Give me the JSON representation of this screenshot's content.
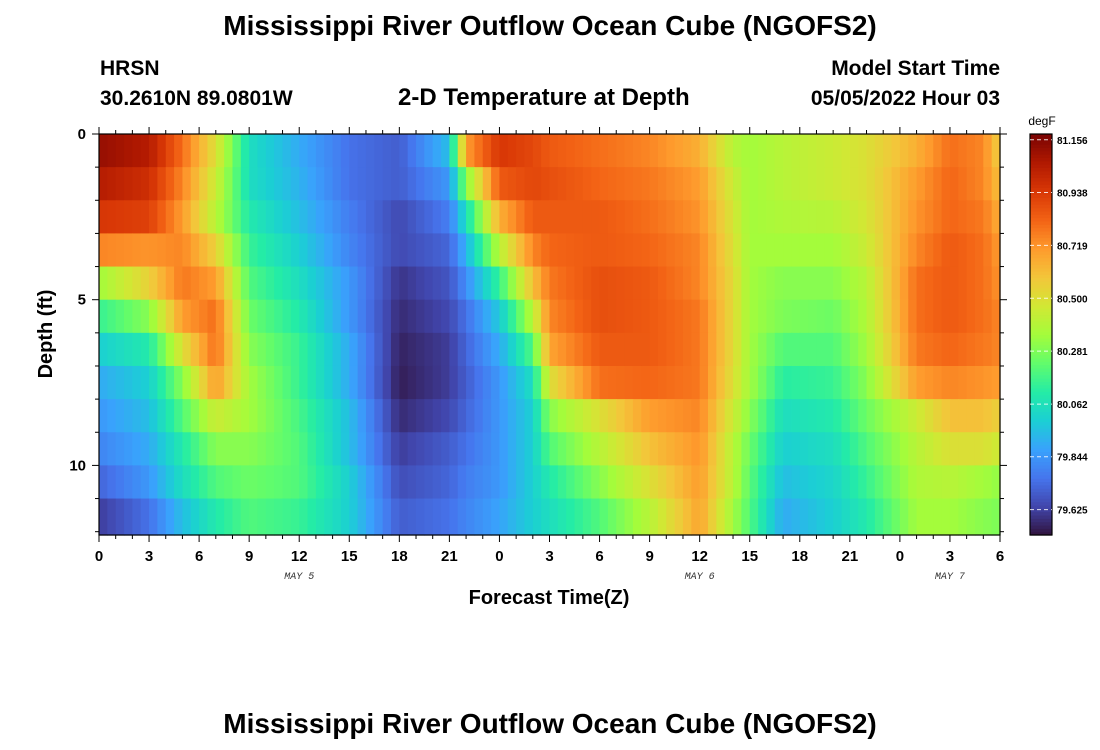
{
  "header": {
    "title": "Mississippi River Outflow Ocean Cube (NGOFS2)",
    "station": "HRSN",
    "coordinates": "30.2610N  89.0801W",
    "subtitle": "2-D Temperature at Depth",
    "model_start_label": "Model Start Time",
    "model_start_value": "05/05/2022 Hour 03"
  },
  "footer": {
    "title": "Mississippi River Outflow Ocean Cube (NGOFS2)"
  },
  "chart_data": {
    "type": "heatmap",
    "title": "2-D Temperature at Depth",
    "xlabel": "Forecast Time(Z)",
    "ylabel": "Depth (ft)",
    "units": "degF",
    "x_hours": [
      0,
      54
    ],
    "y_range_ft": [
      0,
      12.1
    ],
    "x_tick_labels": [
      "0",
      "3",
      "6",
      "9",
      "12",
      "15",
      "18",
      "21",
      "0",
      "3",
      "6",
      "9",
      "12",
      "15",
      "18",
      "21",
      "0",
      "3",
      "6"
    ],
    "y_ticks": [
      0,
      5,
      10
    ],
    "y_tick_labels": [
      "0",
      "5",
      "10"
    ],
    "date_labels": [
      {
        "label": "MAY 5",
        "hour": 12
      },
      {
        "label": "MAY 6",
        "hour": 36
      },
      {
        "label": "MAY 7",
        "hour": 51
      }
    ],
    "colorbar": {
      "min": 79.52,
      "max": 81.18,
      "tick_values": [
        81.156,
        80.938,
        80.719,
        80.5,
        80.281,
        80.062,
        79.844,
        79.625
      ],
      "tick_labels": [
        "81.156",
        "80.938",
        "80.719",
        "80.500",
        "80.281",
        "80.062",
        "79.844",
        "79.625"
      ],
      "colors": [
        "#30123b",
        "#4145ab",
        "#4675ed",
        "#39a2fc",
        "#1bcfd4",
        "#24eca6",
        "#61fc6c",
        "#a4fc3b",
        "#d1e834",
        "#f3c63a",
        "#fe9b2d",
        "#f36315",
        "#d93806",
        "#b11901",
        "#7a0403"
      ]
    },
    "depth_levels_ft": [
      0.5,
      1.5,
      2.5,
      3.5,
      4.5,
      5.5,
      6.5,
      7.5,
      8.5,
      9.5,
      10.5,
      11.5
    ],
    "profile_knots": [
      {
        "hour": 0,
        "temp": [
          81.12,
          81.05,
          80.95,
          80.75,
          80.35,
          80.15,
          80.0,
          79.9,
          79.85,
          79.8,
          79.72,
          79.62
        ]
      },
      {
        "hour": 3,
        "temp": [
          81.05,
          80.98,
          80.92,
          80.72,
          80.55,
          80.3,
          80.1,
          80.0,
          79.95,
          79.9,
          79.85,
          79.75
        ]
      },
      {
        "hour": 5,
        "temp": [
          80.8,
          80.75,
          80.7,
          80.75,
          80.78,
          80.7,
          80.5,
          80.3,
          80.2,
          80.1,
          80.05,
          79.95
        ]
      },
      {
        "hour": 7,
        "temp": [
          80.5,
          80.45,
          80.4,
          80.55,
          80.7,
          80.8,
          80.8,
          80.7,
          80.45,
          80.3,
          80.2,
          80.1
        ]
      },
      {
        "hour": 9,
        "temp": [
          80.05,
          80.05,
          80.1,
          80.15,
          80.2,
          80.25,
          80.3,
          80.35,
          80.35,
          80.3,
          80.25,
          80.2
        ]
      },
      {
        "hour": 12,
        "temp": [
          79.9,
          79.92,
          79.95,
          80.0,
          80.05,
          80.1,
          80.15,
          80.15,
          80.18,
          80.2,
          80.2,
          80.15
        ]
      },
      {
        "hour": 15,
        "temp": [
          79.75,
          79.75,
          79.78,
          79.8,
          79.85,
          79.85,
          79.9,
          79.9,
          79.95,
          79.95,
          80.0,
          80.0
        ]
      },
      {
        "hour": 18,
        "temp": [
          79.7,
          79.7,
          79.65,
          79.65,
          79.6,
          79.58,
          79.56,
          79.55,
          79.58,
          79.62,
          79.66,
          79.7
        ]
      },
      {
        "hour": 21,
        "temp": [
          79.95,
          79.85,
          79.78,
          79.72,
          79.68,
          79.65,
          79.62,
          79.62,
          79.65,
          79.7,
          79.72,
          79.75
        ]
      },
      {
        "hour": 22,
        "temp": [
          80.7,
          80.3,
          80.05,
          79.92,
          79.82,
          79.75,
          79.72,
          79.7,
          79.72,
          79.75,
          79.78,
          79.8
        ]
      },
      {
        "hour": 24,
        "temp": [
          80.95,
          80.85,
          80.65,
          80.4,
          80.15,
          79.98,
          79.9,
          79.85,
          79.85,
          79.85,
          79.85,
          79.88
        ]
      },
      {
        "hour": 26,
        "temp": [
          80.9,
          80.9,
          80.85,
          80.75,
          80.6,
          80.4,
          80.2,
          80.05,
          80.0,
          80.0,
          80.0,
          80.0
        ]
      },
      {
        "hour": 27,
        "temp": [
          80.85,
          80.88,
          80.85,
          80.82,
          80.78,
          80.75,
          80.68,
          80.5,
          80.3,
          80.2,
          80.1,
          80.05
        ]
      },
      {
        "hour": 30,
        "temp": [
          80.8,
          80.82,
          80.85,
          80.85,
          80.88,
          80.88,
          80.85,
          80.8,
          80.5,
          80.4,
          80.3,
          80.2
        ]
      },
      {
        "hour": 33,
        "temp": [
          80.75,
          80.78,
          80.8,
          80.82,
          80.85,
          80.85,
          80.85,
          80.82,
          80.7,
          80.6,
          80.5,
          80.4
        ]
      },
      {
        "hour": 36,
        "temp": [
          80.65,
          80.7,
          80.72,
          80.75,
          80.75,
          80.78,
          80.78,
          80.78,
          80.75,
          80.72,
          80.7,
          80.68
        ]
      },
      {
        "hour": 38,
        "temp": [
          80.4,
          80.45,
          80.48,
          80.5,
          80.52,
          80.52,
          80.52,
          80.5,
          80.45,
          80.4,
          80.4,
          80.35
        ]
      },
      {
        "hour": 39,
        "temp": [
          80.35,
          80.35,
          80.35,
          80.35,
          80.35,
          80.35,
          80.35,
          80.35,
          80.3,
          80.25,
          80.22,
          80.2
        ]
      },
      {
        "hour": 41,
        "temp": [
          80.4,
          80.4,
          80.38,
          80.35,
          80.3,
          80.28,
          80.2,
          80.12,
          80.05,
          80.0,
          79.95,
          79.9
        ]
      },
      {
        "hour": 44,
        "temp": [
          80.45,
          80.45,
          80.4,
          80.35,
          80.3,
          80.25,
          80.2,
          80.15,
          80.1,
          80.05,
          80.02,
          80.0
        ]
      },
      {
        "hour": 46,
        "temp": [
          80.5,
          80.5,
          80.48,
          80.45,
          80.4,
          80.38,
          80.35,
          80.3,
          80.25,
          80.2,
          80.15,
          80.1
        ]
      },
      {
        "hour": 49,
        "temp": [
          80.65,
          80.7,
          80.72,
          80.75,
          80.8,
          80.8,
          80.78,
          80.7,
          80.45,
          80.4,
          80.38,
          80.35
        ]
      },
      {
        "hour": 51,
        "temp": [
          80.8,
          80.82,
          80.82,
          80.85,
          80.85,
          80.85,
          80.82,
          80.75,
          80.6,
          80.5,
          80.4,
          80.35
        ]
      },
      {
        "hour": 53,
        "temp": [
          80.75,
          80.75,
          80.78,
          80.8,
          80.8,
          80.8,
          80.78,
          80.72,
          80.6,
          80.5,
          80.35,
          80.3
        ]
      },
      {
        "hour": 54,
        "temp": [
          80.55,
          80.6,
          80.65,
          80.7,
          80.72,
          80.75,
          80.75,
          80.7,
          80.55,
          80.45,
          80.32,
          80.28
        ]
      }
    ]
  }
}
